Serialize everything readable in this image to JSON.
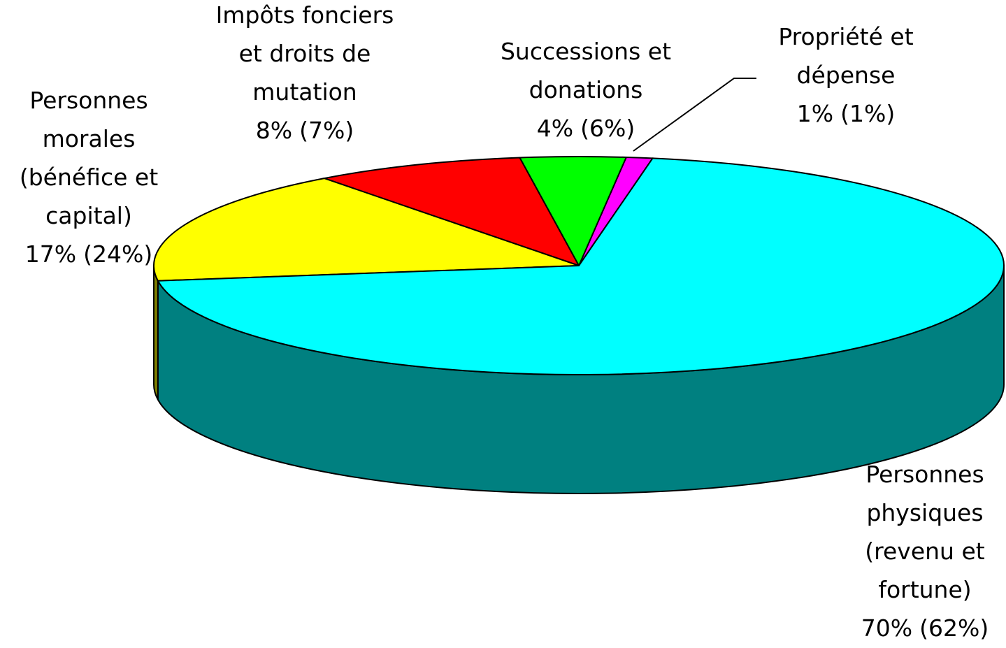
{
  "chart_data": {
    "type": "pie3d",
    "categories": [
      [
        "Propriété et",
        "dépense"
      ],
      [
        "Successions et",
        "donations"
      ],
      [
        "Impôts fonciers",
        "et droits de",
        "mutation"
      ],
      [
        "Personnes",
        "morales",
        "(bénéfice et",
        "capital)"
      ],
      [
        "Personnes",
        "physiques",
        "(revenu et",
        "fortune)"
      ]
    ],
    "series": [
      {
        "values": [
          1,
          4,
          8,
          17,
          70
        ],
        "value_labels": [
          "1%",
          "4%",
          "8%",
          "17%",
          "70%"
        ],
        "colors": [
          "#ff00ff",
          "#00ff00",
          "#ff0000",
          "#ffff00",
          "#00ffff"
        ]
      },
      {
        "values": [
          1,
          6,
          7,
          24,
          62
        ],
        "value_labels": [
          "(1%)",
          "(6%)",
          "(7%)",
          "(24%)",
          "(62%)"
        ]
      }
    ]
  }
}
